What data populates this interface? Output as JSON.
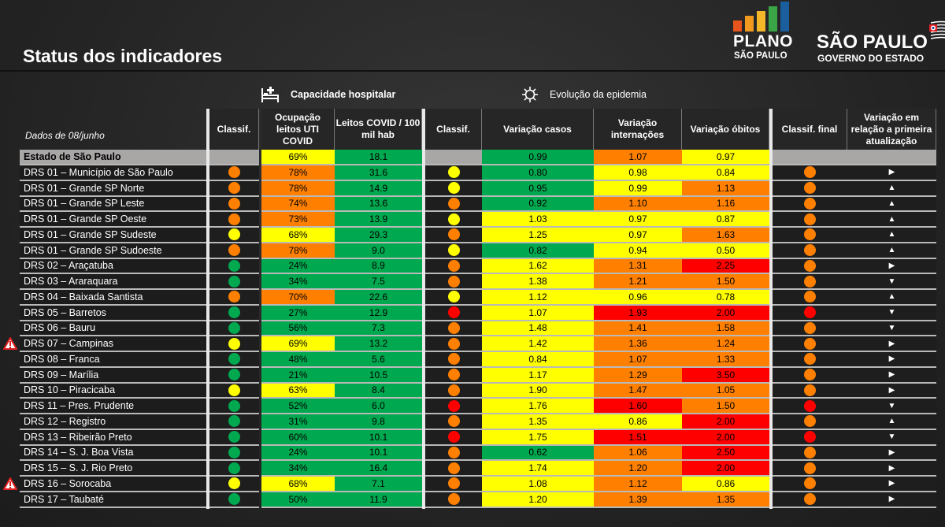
{
  "title": "Status dos indicadores",
  "logos": {
    "plano_line1": "PLANO",
    "plano_line2": "SÃO PAULO",
    "plano_bar_colors": [
      "#e8541b",
      "#f29a1f",
      "#f6b62a",
      "#3aa547",
      "#1a5e9e"
    ],
    "gov_line1": "SÃO PAULO",
    "gov_line2": "GOVERNO DO ESTADO"
  },
  "sections": {
    "capacity": {
      "label": "Capacidade hospitalar",
      "icon": "hospital-bed-icon"
    },
    "epidemic": {
      "label": "Evolução da epidemia",
      "icon": "virus-icon"
    }
  },
  "date_label": "Dados de 08/junho",
  "headers": {
    "classif1": "Classif.",
    "ocupacao": "Ocupação leitos UTI COVID",
    "leitos": "Leitos COVID / 100 mil hab",
    "classif2": "Classif.",
    "casos": "Variação casos",
    "internacoes": "Variação internações",
    "obitos": "Variação óbitos",
    "final": "Classif. final",
    "variacao": "Variação em relação a primeira atualização"
  },
  "colors": {
    "g": "#00a84f",
    "y": "#ffff00",
    "o": "#ff8000",
    "r": "#ff0000"
  },
  "state_row": {
    "name": "Estado de São Paulo",
    "ocup": [
      "69%",
      "y"
    ],
    "leitos": [
      "18.1",
      "g"
    ],
    "casos": [
      "0.99",
      "g"
    ],
    "intern": [
      "1.07",
      "o"
    ],
    "obitos": [
      "0.97",
      "y"
    ]
  },
  "rows": [
    {
      "name": "DRS 01 – Município de São Paulo",
      "c1": "o",
      "ocup": [
        "78%",
        "o"
      ],
      "leitos": [
        "31.6",
        "g"
      ],
      "c2": "y",
      "casos": [
        "0.80",
        "g"
      ],
      "intern": [
        "0.98",
        "y"
      ],
      "obitos": [
        "0.84",
        "y"
      ],
      "final": "o",
      "trend": "right"
    },
    {
      "name": "DRS 01 – Grande SP Norte",
      "c1": "o",
      "ocup": [
        "78%",
        "o"
      ],
      "leitos": [
        "14.9",
        "g"
      ],
      "c2": "y",
      "casos": [
        "0.95",
        "g"
      ],
      "intern": [
        "0.99",
        "y"
      ],
      "obitos": [
        "1.13",
        "o"
      ],
      "final": "o",
      "trend": "up"
    },
    {
      "name": "DRS 01 – Grande SP Leste",
      "c1": "o",
      "ocup": [
        "74%",
        "o"
      ],
      "leitos": [
        "13.6",
        "g"
      ],
      "c2": "o",
      "casos": [
        "0.92",
        "g"
      ],
      "intern": [
        "1.10",
        "o"
      ],
      "obitos": [
        "1.16",
        "o"
      ],
      "final": "o",
      "trend": "up"
    },
    {
      "name": "DRS 01 – Grande SP Oeste",
      "c1": "o",
      "ocup": [
        "73%",
        "o"
      ],
      "leitos": [
        "13.9",
        "g"
      ],
      "c2": "y",
      "casos": [
        "1.03",
        "y"
      ],
      "intern": [
        "0.97",
        "y"
      ],
      "obitos": [
        "0.87",
        "y"
      ],
      "final": "o",
      "trend": "up"
    },
    {
      "name": "DRS 01 – Grande SP Sudeste",
      "c1": "y",
      "ocup": [
        "68%",
        "y"
      ],
      "leitos": [
        "29.3",
        "g"
      ],
      "c2": "o",
      "casos": [
        "1.25",
        "y"
      ],
      "intern": [
        "0.97",
        "y"
      ],
      "obitos": [
        "1.63",
        "o"
      ],
      "final": "o",
      "trend": "up"
    },
    {
      "name": "DRS 01 – Grande SP Sudoeste",
      "c1": "o",
      "ocup": [
        "78%",
        "o"
      ],
      "leitos": [
        "9.0",
        "g"
      ],
      "c2": "y",
      "casos": [
        "0.82",
        "g"
      ],
      "intern": [
        "0.94",
        "y"
      ],
      "obitos": [
        "0.50",
        "y"
      ],
      "final": "o",
      "trend": "up"
    },
    {
      "name": "DRS 02 – Araçatuba",
      "c1": "g",
      "ocup": [
        "24%",
        "g"
      ],
      "leitos": [
        "8.9",
        "g"
      ],
      "c2": "o",
      "casos": [
        "1.62",
        "y"
      ],
      "intern": [
        "1.31",
        "o"
      ],
      "obitos": [
        "2.25",
        "r"
      ],
      "final": "o",
      "trend": "right"
    },
    {
      "name": "DRS 03 – Araraquara",
      "c1": "g",
      "ocup": [
        "34%",
        "g"
      ],
      "leitos": [
        "7.5",
        "g"
      ],
      "c2": "o",
      "casos": [
        "1.38",
        "y"
      ],
      "intern": [
        "1.21",
        "o"
      ],
      "obitos": [
        "1.50",
        "o"
      ],
      "final": "o",
      "trend": "down"
    },
    {
      "name": "DRS 04 – Baixada Santista",
      "c1": "o",
      "ocup": [
        "70%",
        "o"
      ],
      "leitos": [
        "22.6",
        "g"
      ],
      "c2": "y",
      "casos": [
        "1.12",
        "y"
      ],
      "intern": [
        "0.96",
        "y"
      ],
      "obitos": [
        "0.78",
        "y"
      ],
      "final": "o",
      "trend": "up"
    },
    {
      "name": "DRS 05 – Barretos",
      "c1": "g",
      "ocup": [
        "27%",
        "g"
      ],
      "leitos": [
        "12.9",
        "g"
      ],
      "c2": "r",
      "casos": [
        "1.07",
        "y"
      ],
      "intern": [
        "1.93",
        "r"
      ],
      "obitos": [
        "2.00",
        "r"
      ],
      "final": "r",
      "trend": "down"
    },
    {
      "name": "DRS 06 – Bauru",
      "c1": "g",
      "ocup": [
        "56%",
        "g"
      ],
      "leitos": [
        "7.3",
        "g"
      ],
      "c2": "o",
      "casos": [
        "1.48",
        "y"
      ],
      "intern": [
        "1.41",
        "o"
      ],
      "obitos": [
        "1.58",
        "o"
      ],
      "final": "o",
      "trend": "down"
    },
    {
      "name": "DRS 07 – Campinas",
      "warning": true,
      "c1": "y",
      "ocup": [
        "69%",
        "y"
      ],
      "leitos": [
        "13.2",
        "g"
      ],
      "c2": "o",
      "casos": [
        "1.42",
        "y"
      ],
      "intern": [
        "1.36",
        "o"
      ],
      "obitos": [
        "1.24",
        "o"
      ],
      "final": "o",
      "trend": "right"
    },
    {
      "name": "DRS 08 – Franca",
      "c1": "g",
      "ocup": [
        "48%",
        "g"
      ],
      "leitos": [
        "5.6",
        "g"
      ],
      "c2": "o",
      "casos": [
        "0.84",
        "y"
      ],
      "intern": [
        "1.07",
        "o"
      ],
      "obitos": [
        "1.33",
        "o"
      ],
      "final": "o",
      "trend": "right"
    },
    {
      "name": "DRS 09 – Marília",
      "c1": "g",
      "ocup": [
        "21%",
        "g"
      ],
      "leitos": [
        "10.5",
        "g"
      ],
      "c2": "o",
      "casos": [
        "1.17",
        "y"
      ],
      "intern": [
        "1.29",
        "o"
      ],
      "obitos": [
        "3.50",
        "r"
      ],
      "final": "o",
      "trend": "right"
    },
    {
      "name": "DRS 10 – Piracicaba",
      "c1": "y",
      "ocup": [
        "63%",
        "y"
      ],
      "leitos": [
        "8.4",
        "g"
      ],
      "c2": "o",
      "casos": [
        "1.90",
        "y"
      ],
      "intern": [
        "1.47",
        "o"
      ],
      "obitos": [
        "1.05",
        "o"
      ],
      "final": "o",
      "trend": "right"
    },
    {
      "name": "DRS 11 – Pres. Prudente",
      "c1": "g",
      "ocup": [
        "52%",
        "g"
      ],
      "leitos": [
        "6.0",
        "g"
      ],
      "c2": "r",
      "casos": [
        "1.76",
        "y"
      ],
      "intern": [
        "1.60",
        "r"
      ],
      "obitos": [
        "1.50",
        "o"
      ],
      "final": "r",
      "trend": "down"
    },
    {
      "name": "DRS 12 – Registro",
      "c1": "g",
      "ocup": [
        "31%",
        "g"
      ],
      "leitos": [
        "9.8",
        "g"
      ],
      "c2": "o",
      "casos": [
        "1.35",
        "y"
      ],
      "intern": [
        "0.86",
        "y"
      ],
      "obitos": [
        "2.00",
        "r"
      ],
      "final": "o",
      "trend": "up"
    },
    {
      "name": "DRS 13 – Ribeirão Preto",
      "c1": "g",
      "ocup": [
        "60%",
        "g"
      ],
      "leitos": [
        "10.1",
        "g"
      ],
      "c2": "r",
      "casos": [
        "1.75",
        "y"
      ],
      "intern": [
        "1.51",
        "r"
      ],
      "obitos": [
        "2.00",
        "r"
      ],
      "final": "r",
      "trend": "down"
    },
    {
      "name": "DRS 14 – S. J. Boa Vista",
      "c1": "g",
      "ocup": [
        "24%",
        "g"
      ],
      "leitos": [
        "10.1",
        "g"
      ],
      "c2": "o",
      "casos": [
        "0.62",
        "g"
      ],
      "intern": [
        "1.06",
        "o"
      ],
      "obitos": [
        "2.50",
        "r"
      ],
      "final": "o",
      "trend": "right"
    },
    {
      "name": "DRS 15 – S. J. Rio Preto",
      "c1": "g",
      "ocup": [
        "34%",
        "g"
      ],
      "leitos": [
        "16.4",
        "g"
      ],
      "c2": "o",
      "casos": [
        "1.74",
        "y"
      ],
      "intern": [
        "1.20",
        "o"
      ],
      "obitos": [
        "2.00",
        "r"
      ],
      "final": "o",
      "trend": "right"
    },
    {
      "name": "DRS 16 – Sorocaba",
      "warning": true,
      "c1": "y",
      "ocup": [
        "68%",
        "y"
      ],
      "leitos": [
        "7.1",
        "g"
      ],
      "c2": "o",
      "casos": [
        "1.08",
        "y"
      ],
      "intern": [
        "1.12",
        "o"
      ],
      "obitos": [
        "0.86",
        "y"
      ],
      "final": "o",
      "trend": "right"
    },
    {
      "name": "DRS 17 – Taubaté",
      "c1": "g",
      "ocup": [
        "50%",
        "g"
      ],
      "leitos": [
        "11.9",
        "g"
      ],
      "c2": "o",
      "casos": [
        "1.20",
        "y"
      ],
      "intern": [
        "1.39",
        "o"
      ],
      "obitos": [
        "1.35",
        "o"
      ],
      "final": "o",
      "trend": "right"
    }
  ]
}
